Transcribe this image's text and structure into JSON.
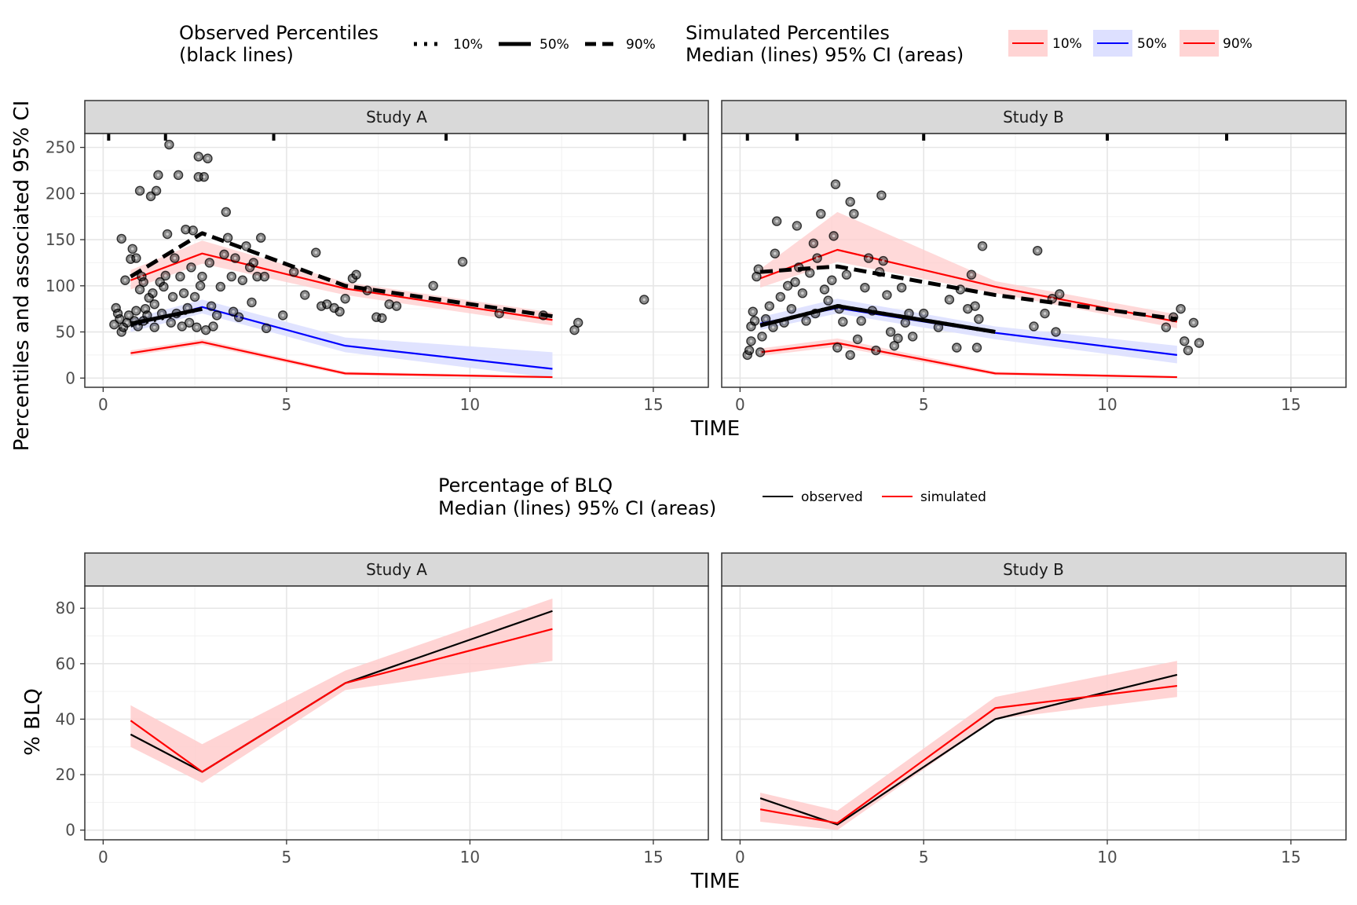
{
  "top_legend": {
    "observed_title_line1": "Observed Percentiles",
    "observed_title_line2": "(black lines)",
    "observed_keys": [
      "10%",
      "50%",
      "90%"
    ],
    "simulated_title_line1": "Simulated Percentiles",
    "simulated_title_line2": "Median (lines) 95% CI (areas)",
    "simulated_keys": [
      "10%",
      "50%",
      "90%"
    ]
  },
  "bottom_legend": {
    "title_line1": "Percentage of BLQ",
    "title_line2": "Median (lines) 95% CI (areas)",
    "keys": [
      "observed",
      "simulated"
    ]
  },
  "axes": {
    "top_xlabel": "TIME",
    "top_ylabel": "Percentiles and associated 95% CI",
    "bottom_xlabel": "TIME",
    "bottom_ylabel": "% BLQ"
  },
  "colors": {
    "red": "#ff0000",
    "blue": "#0000ff",
    "black": "#000000",
    "red_fill": "#ffcccc",
    "blue_fill": "#dde0ff"
  },
  "chart_data": [
    {
      "type": "line",
      "panel": "Study A",
      "xlim": [
        -0.5,
        16.5
      ],
      "ylim": [
        -10,
        265
      ],
      "xticks": [
        0,
        5,
        10,
        15
      ],
      "yticks": [
        0,
        50,
        100,
        150,
        200,
        250
      ],
      "bin_edges": [
        0.15,
        1.7,
        4.65,
        9.35,
        15.85
      ],
      "sim_p10": {
        "x": [
          0.75,
          2.7,
          6.6,
          12.25
        ],
        "median": [
          27,
          39,
          5,
          1
        ],
        "lo": [
          24,
          36,
          3,
          0
        ],
        "hi": [
          30,
          42,
          7,
          2
        ]
      },
      "sim_p50": {
        "x": [
          0.75,
          2.7,
          6.6,
          12.25
        ],
        "median": [
          57,
          77,
          35,
          10
        ],
        "lo": [
          50,
          70,
          28,
          0
        ],
        "hi": [
          64,
          85,
          44,
          28
        ]
      },
      "sim_p90": {
        "x": [
          0.75,
          2.7,
          6.6,
          12.25
        ],
        "median": [
          106,
          135,
          97,
          63
        ],
        "lo": [
          96,
          124,
          90,
          57
        ],
        "hi": [
          117,
          149,
          104,
          71
        ]
      },
      "obs_p10": {
        "x": [
          0.75,
          2.7
        ],
        "y": [
          57,
          75
        ]
      },
      "obs_p50": {
        "x": [
          0.75,
          2.7
        ],
        "y": [
          59,
          75
        ]
      },
      "obs_p90": {
        "x": [
          0.75,
          2.7,
          6.6,
          12.25
        ],
        "y": [
          110,
          157,
          100,
          67
        ]
      },
      "points": [
        [
          0.3,
          58
        ],
        [
          0.35,
          76
        ],
        [
          0.4,
          70
        ],
        [
          0.45,
          64
        ],
        [
          0.5,
          50
        ],
        [
          0.5,
          151
        ],
        [
          0.55,
          55
        ],
        [
          0.6,
          106
        ],
        [
          0.65,
          60
        ],
        [
          0.7,
          68
        ],
        [
          0.75,
          129
        ],
        [
          0.8,
          140
        ],
        [
          0.85,
          62
        ],
        [
          0.9,
          73
        ],
        [
          0.9,
          130
        ],
        [
          0.95,
          56
        ],
        [
          1.0,
          203
        ],
        [
          1.0,
          96
        ],
        [
          1.05,
          110
        ],
        [
          1.1,
          104
        ],
        [
          1.1,
          62
        ],
        [
          1.15,
          75
        ],
        [
          1.2,
          68
        ],
        [
          1.25,
          87
        ],
        [
          1.3,
          197
        ],
        [
          1.35,
          92
        ],
        [
          1.4,
          80
        ],
        [
          1.4,
          55
        ],
        [
          1.45,
          203
        ],
        [
          1.5,
          220
        ],
        [
          1.55,
          104
        ],
        [
          1.6,
          70
        ],
        [
          1.65,
          99
        ],
        [
          1.7,
          111
        ],
        [
          1.75,
          156
        ],
        [
          1.8,
          253
        ],
        [
          1.85,
          60
        ],
        [
          1.9,
          88
        ],
        [
          1.95,
          130
        ],
        [
          2.0,
          70
        ],
        [
          2.05,
          220
        ],
        [
          2.1,
          110
        ],
        [
          2.15,
          56
        ],
        [
          2.2,
          92
        ],
        [
          2.25,
          161
        ],
        [
          2.3,
          76
        ],
        [
          2.35,
          60
        ],
        [
          2.4,
          120
        ],
        [
          2.45,
          160
        ],
        [
          2.5,
          88
        ],
        [
          2.55,
          55
        ],
        [
          2.6,
          240
        ],
        [
          2.6,
          218
        ],
        [
          2.65,
          100
        ],
        [
          2.7,
          110
        ],
        [
          2.75,
          218
        ],
        [
          2.8,
          52
        ],
        [
          2.85,
          238
        ],
        [
          2.9,
          125
        ],
        [
          2.95,
          78
        ],
        [
          3.0,
          56
        ],
        [
          3.1,
          68
        ],
        [
          3.2,
          99
        ],
        [
          3.3,
          134
        ],
        [
          3.35,
          180
        ],
        [
          3.4,
          152
        ],
        [
          3.5,
          110
        ],
        [
          3.55,
          72
        ],
        [
          3.6,
          130
        ],
        [
          3.7,
          66
        ],
        [
          3.8,
          106
        ],
        [
          3.9,
          143
        ],
        [
          4.0,
          120
        ],
        [
          4.05,
          82
        ],
        [
          4.1,
          125
        ],
        [
          4.2,
          110
        ],
        [
          4.3,
          152
        ],
        [
          4.4,
          110
        ],
        [
          4.45,
          54
        ],
        [
          4.9,
          68
        ],
        [
          5.2,
          115
        ],
        [
          5.5,
          90
        ],
        [
          5.8,
          136
        ],
        [
          5.95,
          78
        ],
        [
          6.1,
          80
        ],
        [
          6.3,
          76
        ],
        [
          6.45,
          72
        ],
        [
          6.6,
          86
        ],
        [
          6.8,
          108
        ],
        [
          6.9,
          112
        ],
        [
          7.2,
          95
        ],
        [
          7.45,
          66
        ],
        [
          7.6,
          65
        ],
        [
          7.8,
          80
        ],
        [
          8.0,
          78
        ],
        [
          9.0,
          100
        ],
        [
          9.8,
          126
        ],
        [
          10.8,
          70
        ],
        [
          12.0,
          68
        ],
        [
          12.85,
          52
        ],
        [
          12.95,
          60
        ],
        [
          14.75,
          85
        ]
      ]
    },
    {
      "type": "line",
      "panel": "Study B",
      "xlim": [
        -0.5,
        16.5
      ],
      "ylim": [
        -10,
        265
      ],
      "xticks": [
        0,
        5,
        10,
        15
      ],
      "yticks": [
        0,
        50,
        100,
        150,
        200,
        250
      ],
      "bin_edges": [
        0.2,
        1.55,
        5.0,
        10.0,
        13.25
      ],
      "sim_p10": {
        "x": [
          0.55,
          2.65,
          6.95,
          11.9
        ],
        "median": [
          28,
          38,
          5,
          1
        ],
        "lo": [
          24,
          34,
          3,
          0
        ],
        "hi": [
          32,
          43,
          7,
          2
        ]
      },
      "sim_p50": {
        "x": [
          0.55,
          2.65,
          6.95,
          11.9
        ],
        "median": [
          59,
          76,
          49,
          25
        ],
        "lo": [
          52,
          70,
          42,
          16
        ],
        "hi": [
          66,
          86,
          56,
          35
        ]
      },
      "sim_p90": {
        "x": [
          0.55,
          2.65,
          6.95,
          11.9
        ],
        "median": [
          108,
          139,
          99,
          61
        ],
        "lo": [
          98,
          126,
          92,
          54
        ],
        "hi": [
          118,
          180,
          105,
          69
        ]
      },
      "obs_p10": {
        "x": [
          0.55,
          2.65,
          6.95
        ],
        "y": [
          57,
          78,
          50
        ]
      },
      "obs_p50": {
        "x": [
          0.55,
          2.65,
          6.95
        ],
        "y": [
          57,
          78,
          50
        ]
      },
      "obs_p90": {
        "x": [
          0.55,
          1.55,
          2.65,
          6.95,
          11.9
        ],
        "y": [
          115,
          118,
          121,
          90,
          64
        ]
      },
      "points": [
        [
          0.2,
          25
        ],
        [
          0.25,
          30
        ],
        [
          0.3,
          40
        ],
        [
          0.3,
          56
        ],
        [
          0.35,
          72
        ],
        [
          0.4,
          62
        ],
        [
          0.45,
          110
        ],
        [
          0.5,
          118
        ],
        [
          0.55,
          28
        ],
        [
          0.6,
          45
        ],
        [
          0.7,
          64
        ],
        [
          0.8,
          78
        ],
        [
          0.9,
          55
        ],
        [
          0.95,
          135
        ],
        [
          1.0,
          170
        ],
        [
          1.1,
          88
        ],
        [
          1.2,
          60
        ],
        [
          1.3,
          100
        ],
        [
          1.4,
          75
        ],
        [
          1.5,
          104
        ],
        [
          1.55,
          165
        ],
        [
          1.6,
          120
        ],
        [
          1.7,
          92
        ],
        [
          1.8,
          62
        ],
        [
          1.9,
          114
        ],
        [
          2.0,
          146
        ],
        [
          2.05,
          70
        ],
        [
          2.1,
          130
        ],
        [
          2.2,
          178
        ],
        [
          2.3,
          96
        ],
        [
          2.4,
          84
        ],
        [
          2.5,
          106
        ],
        [
          2.55,
          154
        ],
        [
          2.6,
          210
        ],
        [
          2.65,
          33
        ],
        [
          2.7,
          75
        ],
        [
          2.8,
          61
        ],
        [
          2.9,
          112
        ],
        [
          3.0,
          25
        ],
        [
          3.0,
          191
        ],
        [
          3.1,
          178
        ],
        [
          3.2,
          42
        ],
        [
          3.3,
          62
        ],
        [
          3.4,
          98
        ],
        [
          3.5,
          130
        ],
        [
          3.6,
          73
        ],
        [
          3.7,
          30
        ],
        [
          3.8,
          115
        ],
        [
          3.85,
          198
        ],
        [
          3.9,
          127
        ],
        [
          4.0,
          90
        ],
        [
          4.1,
          50
        ],
        [
          4.2,
          35
        ],
        [
          4.3,
          43
        ],
        [
          4.4,
          98
        ],
        [
          4.5,
          60
        ],
        [
          4.6,
          70
        ],
        [
          4.7,
          45
        ],
        [
          5.0,
          70
        ],
        [
          5.4,
          55
        ],
        [
          5.7,
          85
        ],
        [
          5.9,
          33
        ],
        [
          6.0,
          96
        ],
        [
          6.2,
          75
        ],
        [
          6.3,
          112
        ],
        [
          6.4,
          78
        ],
        [
          6.45,
          33
        ],
        [
          6.5,
          64
        ],
        [
          6.6,
          143
        ],
        [
          8.0,
          56
        ],
        [
          8.1,
          138
        ],
        [
          8.3,
          70
        ],
        [
          8.5,
          86
        ],
        [
          8.6,
          50
        ],
        [
          8.7,
          91
        ],
        [
          11.6,
          55
        ],
        [
          11.8,
          66
        ],
        [
          12.0,
          75
        ],
        [
          12.1,
          40
        ],
        [
          12.2,
          30
        ],
        [
          12.35,
          60
        ],
        [
          12.5,
          38
        ]
      ]
    },
    {
      "type": "line",
      "panel": "Study A",
      "xlim": [
        -0.5,
        16.5
      ],
      "ylim": [
        -3.5,
        88
      ],
      "xticks": [
        0,
        5,
        10,
        15
      ],
      "yticks": [
        0,
        20,
        40,
        60,
        80
      ],
      "observed": {
        "x": [
          0.75,
          2.7,
          6.6,
          12.25
        ],
        "y": [
          34.5,
          21,
          53,
          79
        ]
      },
      "simulated": {
        "x": [
          0.75,
          2.7,
          6.6,
          12.25
        ],
        "median": [
          39.5,
          21,
          53,
          72.5
        ],
        "lo": [
          30,
          17,
          50.5,
          61
        ],
        "hi": [
          45,
          31,
          57.5,
          83.5
        ]
      }
    },
    {
      "type": "line",
      "panel": "Study B",
      "xlim": [
        -0.5,
        16.5
      ],
      "ylim": [
        -3.5,
        88
      ],
      "xticks": [
        0,
        5,
        10,
        15
      ],
      "yticks": [
        0,
        20,
        40,
        60,
        80
      ],
      "observed": {
        "x": [
          0.55,
          2.65,
          6.95,
          11.9
        ],
        "y": [
          11.5,
          2,
          40,
          56
        ]
      },
      "simulated": {
        "x": [
          0.55,
          2.65,
          6.95,
          11.9
        ],
        "median": [
          7.5,
          2.5,
          44,
          52
        ],
        "lo": [
          3,
          0,
          40,
          48
        ],
        "hi": [
          13.5,
          7,
          48,
          61
        ]
      }
    }
  ]
}
